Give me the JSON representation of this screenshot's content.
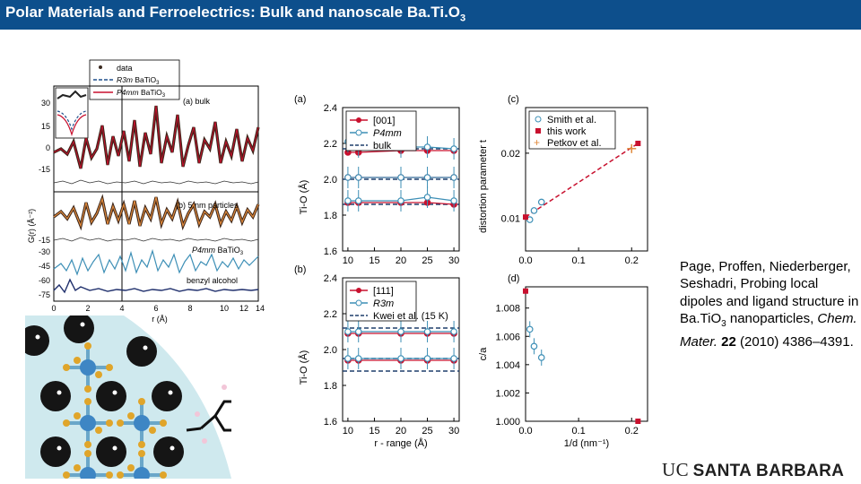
{
  "title": {
    "prefix": "Polar Materials and Ferroelectrics: Bulk and nanoscale Ba.Ti.O",
    "sub": "3"
  },
  "citation": {
    "authors": "Page, Proffen, Niederberger, Seshadri,",
    "text1": "Probing local dipoles and ligand structure in Ba.TiO",
    "text1_sub": "3",
    "text2": " nanoparticles, ",
    "journal": "Chem. Mater.",
    "volume": "22",
    "year_pages": "(2010) 4386–4391."
  },
  "logo": {
    "uc": "UC",
    "sb": "SANTA BARBARA"
  },
  "colors": {
    "title_bg": "#0d4f8c",
    "red": "#c8102e",
    "blue": "#3d8fb6",
    "dark": "#202020",
    "orange": "#e08a3c"
  },
  "left_figure": {
    "legend": {
      "data": "data",
      "r3m": "R3m",
      "p4mm": "P4mm",
      "suffix": "BaTiO",
      "suffix_sub": "3"
    },
    "labels": {
      "a": "(a) bulk",
      "b": "(b) 5 nm particles",
      "p4mm_bto": "P4mm BaTiO",
      "benzyl": "benzyl alcohol"
    },
    "yticks": [
      "30",
      "15",
      "0",
      "-15",
      "-15",
      "-30",
      "-45",
      "-60",
      "-75"
    ],
    "xticks": [
      "0",
      "2",
      "4",
      "6",
      "8",
      "10",
      "12",
      "14"
    ],
    "ylabel": "G(r) (Å⁻²)",
    "xlabel": "r (Å)"
  },
  "chart_data": [
    {
      "type": "scatter",
      "panel": "(a)",
      "xlabel": "",
      "ylabel": "Ti-O (Å)",
      "x": [
        10,
        12,
        20,
        25,
        30
      ],
      "xlim": [
        9,
        31
      ],
      "ylim": [
        1.6,
        2.4
      ],
      "xticks": [
        "10",
        "15",
        "20",
        "25",
        "30"
      ],
      "yticks": [
        "1.6",
        "1.8",
        "2.0",
        "2.2",
        "2.4"
      ],
      "legend": [
        "[001]",
        "P4mm",
        "bulk"
      ],
      "series": [
        {
          "name": "[001] long",
          "values": [
            2.15,
            2.15,
            2.16,
            2.16,
            2.16
          ]
        },
        {
          "name": "[001] mid",
          "values": [
            2.01,
            2.01,
            2.01,
            2.01,
            2.01
          ]
        },
        {
          "name": "[001] short",
          "values": [
            1.87,
            1.87,
            1.87,
            1.87,
            1.86
          ]
        },
        {
          "name": "P4mm long",
          "values": [
            2.21,
            2.18,
            2.18,
            2.18,
            2.17
          ]
        },
        {
          "name": "P4mm mid",
          "values": [
            2.01,
            2.01,
            2.01,
            2.01,
            2.01
          ]
        },
        {
          "name": "P4mm short",
          "values": [
            1.88,
            1.88,
            1.88,
            1.9,
            1.88
          ]
        }
      ],
      "reference_lines": [
        2.17,
        2.0,
        1.86
      ]
    },
    {
      "type": "scatter",
      "panel": "(b)",
      "xlabel": "r - range (Å)",
      "ylabel": "Ti-O (Å)",
      "x": [
        10,
        12,
        20,
        25,
        30
      ],
      "xlim": [
        9,
        31
      ],
      "ylim": [
        1.6,
        2.4
      ],
      "xticks": [
        "10",
        "15",
        "20",
        "25",
        "30"
      ],
      "yticks": [
        "1.6",
        "1.8",
        "2.0",
        "2.2",
        "2.4"
      ],
      "legend": [
        "[111]",
        "R3m",
        "Kwei et al. (15 K)"
      ],
      "series": [
        {
          "name": "[111] long",
          "values": [
            2.09,
            2.09,
            2.09,
            2.09,
            2.09
          ]
        },
        {
          "name": "[111] short",
          "values": [
            1.94,
            1.94,
            1.94,
            1.94,
            1.94
          ]
        },
        {
          "name": "R3m long",
          "values": [
            2.1,
            2.1,
            2.1,
            2.1,
            2.1
          ]
        },
        {
          "name": "R3m short",
          "values": [
            1.95,
            1.95,
            1.95,
            1.95,
            1.95
          ]
        }
      ],
      "reference_lines": [
        2.12,
        1.95,
        1.88
      ]
    },
    {
      "type": "scatter",
      "panel": "(c)",
      "xlabel": "",
      "ylabel": "distortion parameter t",
      "xlim": [
        0,
        0.23
      ],
      "ylim": [
        0.005,
        0.027
      ],
      "xticks": [
        "0.0",
        "0.1",
        "0.2"
      ],
      "yticks": [
        "0.01",
        "0.02"
      ],
      "legend": [
        "Smith et al.",
        "this work",
        "Petkov et al."
      ],
      "series": [
        {
          "name": "Smith et al.",
          "x": [
            0.008,
            0.016,
            0.03
          ],
          "y": [
            0.0098,
            0.0112,
            0.0125
          ]
        },
        {
          "name": "this work",
          "x": [
            0.0,
            0.212
          ],
          "y": [
            0.0102,
            0.0215
          ]
        },
        {
          "name": "Petkov et al.",
          "x": [
            0.2
          ],
          "y": [
            0.0207
          ]
        }
      ],
      "fit_line": {
        "x": [
          0.0,
          0.212
        ],
        "y": [
          0.0102,
          0.0215
        ]
      }
    },
    {
      "type": "scatter",
      "panel": "(d)",
      "xlabel": "1/d (nm⁻¹)",
      "ylabel": "c/a",
      "xlim": [
        0,
        0.23
      ],
      "ylim": [
        1.0,
        1.0095
      ],
      "xticks": [
        "0.0",
        "0.1",
        "0.2"
      ],
      "yticks": [
        "1.000",
        "1.002",
        "1.004",
        "1.006",
        "1.008"
      ],
      "series": [
        {
          "name": "this work",
          "x": [
            0.0,
            0.212
          ],
          "y": [
            1.0092,
            1.0
          ]
        },
        {
          "name": "Smith et al.",
          "x": [
            0.008,
            0.016,
            0.03
          ],
          "y": [
            1.0065,
            1.0053,
            1.0045
          ]
        }
      ]
    }
  ],
  "axis_labels": {
    "ti_o": "Ti-O (Å)",
    "r_range": "r - range (Å)",
    "dist": "distortion parameter t",
    "ca": "c/a",
    "inv_d": "1/d (nm",
    "inv_d_sup": "-1",
    "inv_d_end": ")"
  }
}
